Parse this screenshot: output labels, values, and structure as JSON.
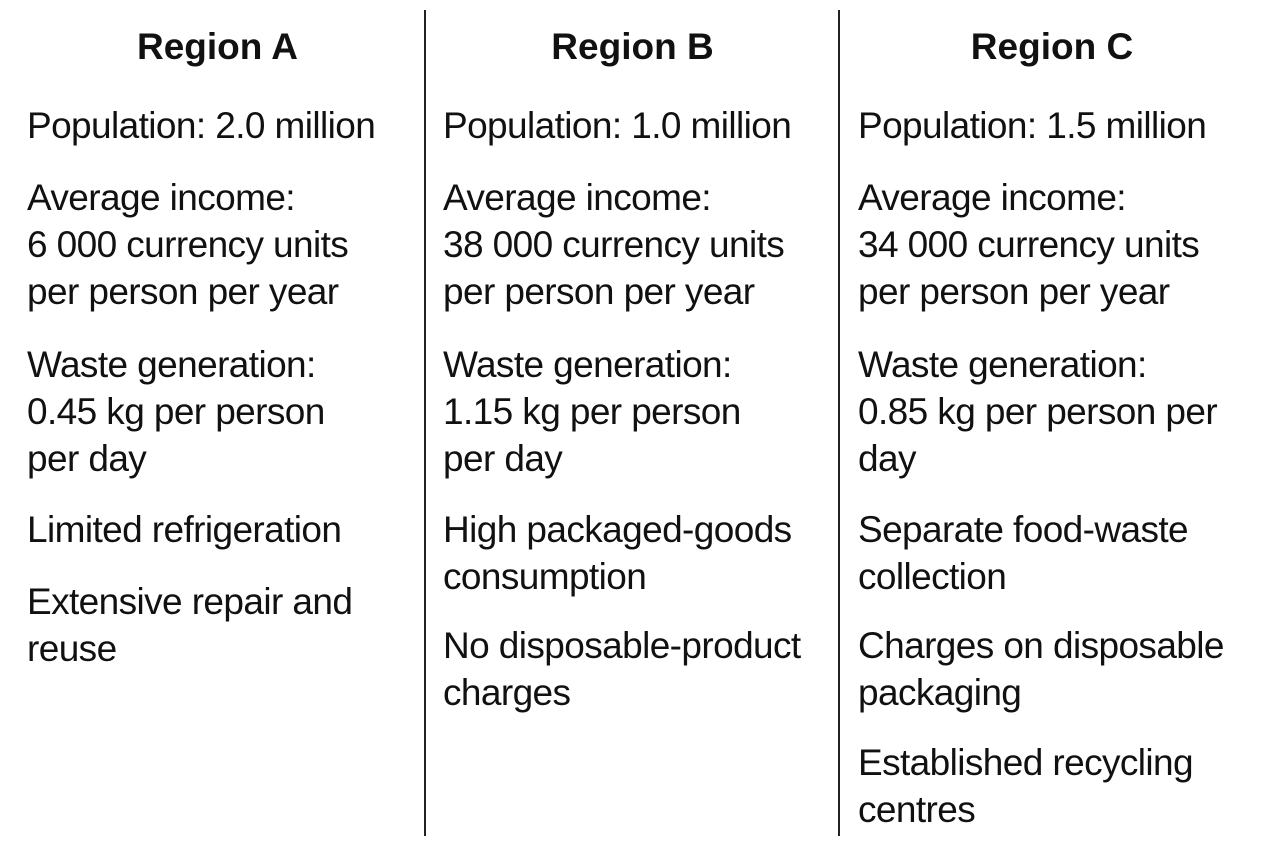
{
  "regions": [
    {
      "name": "Region A",
      "population": "Population: 2.0 million",
      "income": "Average income:\n6 000 currency units\nper person per year",
      "waste": "Waste generation:\n0.45 kg per person\nper day",
      "features": [
        "Limited refrigeration",
        "Extensive repair and\nreuse"
      ]
    },
    {
      "name": "Region B",
      "population": "Population: 1.0 million",
      "income": "Average income:\n38 000 currency units\nper person per year",
      "waste": "Waste generation:\n1.15 kg per person\nper day",
      "features": [
        "High packaged-goods\nconsumption",
        "No disposable-product\ncharges"
      ]
    },
    {
      "name": "Region C",
      "population": "Population: 1.5 million",
      "income": "Average income:\n34 000 currency units\nper person per year",
      "waste": "Waste generation:\n0.85 kg per person per\nday",
      "features": [
        "Separate food-waste\ncollection",
        "Charges on disposable\npackaging",
        "Established recycling\ncentres"
      ]
    }
  ]
}
